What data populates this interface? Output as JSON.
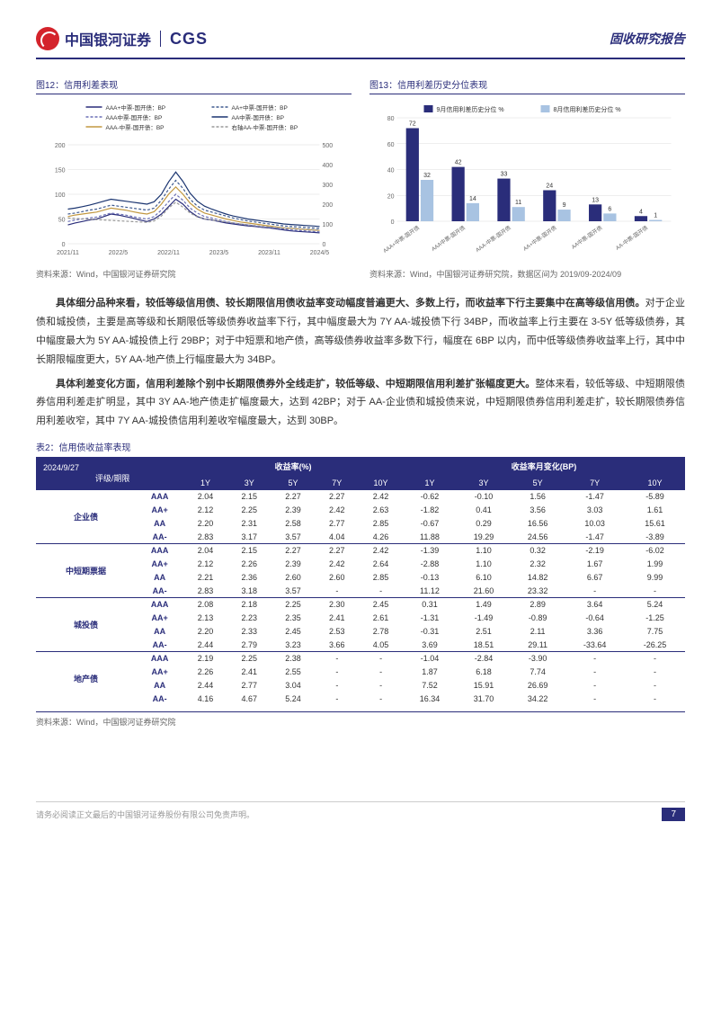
{
  "header": {
    "company_cn": "中国银河证券",
    "company_en": "CGS",
    "report_type": "固收研究报告"
  },
  "chart12": {
    "title": "图12：信用利差表现",
    "source": "资料来源：Wind，中国银河证券研究院",
    "type": "line",
    "legend": [
      "AAA+中票-国开债：BP",
      "AAA中票-国开债：BP",
      "AAA-中票-国开债：BP",
      "AA+中票-国开债：BP",
      "AA中票-国开债：BP",
      "右轴AA-中票-国开债：BP"
    ],
    "x_labels": [
      "2021/11",
      "2022/5",
      "2022/11",
      "2023/5",
      "2023/11",
      "2024/5"
    ],
    "y_left": {
      "min": 0,
      "max": 200,
      "step": 50
    },
    "y_right": {
      "min": 0,
      "max": 500,
      "step": 100
    },
    "colors": [
      "#2a2d7a",
      "#6a6fb5",
      "#c29840",
      "#3f5a8f",
      "#1a3470",
      "#999999"
    ],
    "grid_color": "#dddddd",
    "background": "#ffffff",
    "series": {
      "s1": [
        38,
        42,
        45,
        48,
        50,
        55,
        60,
        58,
        55,
        52,
        48,
        45,
        50,
        60,
        75,
        90,
        80,
        65,
        55,
        50,
        48,
        45,
        42,
        40,
        38,
        36,
        35,
        33,
        32,
        30,
        28,
        26,
        25,
        24,
        23,
        22
      ],
      "s2": [
        45,
        48,
        50,
        52,
        54,
        58,
        62,
        60,
        58,
        55,
        52,
        50,
        55,
        68,
        85,
        100,
        88,
        72,
        62,
        55,
        52,
        48,
        45,
        42,
        40,
        38,
        36,
        34,
        33,
        31,
        30,
        28,
        27,
        26,
        25,
        24
      ],
      "s3": [
        55,
        58,
        60,
        62,
        64,
        68,
        72,
        70,
        68,
        65,
        62,
        60,
        65,
        80,
        100,
        115,
        100,
        82,
        70,
        62,
        58,
        54,
        50,
        47,
        44,
        42,
        40,
        38,
        36,
        34,
        32,
        31,
        30,
        29,
        28,
        27
      ],
      "s4": [
        60,
        62,
        65,
        68,
        70,
        74,
        78,
        76,
        74,
        72,
        70,
        68,
        72,
        88,
        110,
        128,
        112,
        90,
        76,
        68,
        64,
        60,
        56,
        52,
        49,
        46,
        44,
        42,
        40,
        38,
        36,
        35,
        34,
        33,
        32,
        31
      ],
      "s5": [
        70,
        72,
        75,
        78,
        82,
        86,
        90,
        88,
        86,
        84,
        82,
        80,
        85,
        100,
        125,
        145,
        126,
        102,
        86,
        76,
        70,
        65,
        60,
        56,
        53,
        50,
        48,
        46,
        44,
        42,
        40,
        39,
        38,
        37,
        36,
        35
      ],
      "s6": [
        130,
        128,
        126,
        124,
        122,
        120,
        118,
        116,
        114,
        112,
        110,
        108,
        115,
        140,
        180,
        210,
        185,
        155,
        135,
        125,
        120,
        115,
        110,
        105,
        100,
        96,
        92,
        88,
        85,
        82,
        80,
        78,
        76,
        74,
        72,
        70
      ]
    }
  },
  "chart13": {
    "title": "图13：信用利差历史分位表现",
    "source": "资料来源：Wind，中国银河证券研究院，数据区间为 2019/09-2024/09",
    "type": "bar",
    "legend": [
      "9月信用利差历史分位 %",
      "8月信用利差历史分位 %"
    ],
    "colors": [
      "#2a2d7a",
      "#a8c3e2"
    ],
    "x_labels": [
      "AAA+中票-国开债",
      "AAA中票-国开债",
      "AAA-中票-国开债",
      "AA+中票-国开债",
      "AA中票-国开债",
      "AA-中票-国开债"
    ],
    "y": {
      "min": 0,
      "max": 80,
      "step": 20
    },
    "data_sep": [
      72,
      42,
      33,
      24,
      13,
      4
    ],
    "data_aug": [
      32,
      14,
      11,
      9,
      6,
      1
    ],
    "grid_color": "#dddddd",
    "background": "#ffffff"
  },
  "body": {
    "p1_bold": "具体细分品种来看，较低等级信用债、较长期限信用债收益率变动幅度普遍更大、多数上行，而收益率下行主要集中在高等级信用债。",
    "p1_rest": "对于企业债和城投债，主要是高等级和长期限低等级债券收益率下行，其中幅度最大为 7Y AA-城投债下行 34BP，而收益率上行主要在 3-5Y 低等级债券，其中幅度最大为 5Y AA-城投债上行 29BP；对于中短票和地产债，高等级债券收益率多数下行，幅度在 6BP 以内，而中低等级债券收益率上行，其中中长期限幅度更大，5Y AA-地产债上行幅度最大为 34BP。",
    "p2_bold": "具体利差变化方面，信用利差除个别中长期限债券外全线走扩，较低等级、中短期限信用利差扩张幅度更大。",
    "p2_rest": "整体来看，较低等级、中短期限债券信用利差走扩明显，其中 3Y AA-地产债走扩幅度最大，达到 42BP；对于 AA-企业债和城投债来说，中短期限债券信用利差走扩，较长期限债券信用利差收窄，其中 7Y AA-城投债信用利差收窄幅度最大，达到 30BP。"
  },
  "table2": {
    "title": "表2：信用债收益率表现",
    "source": "资料来源：Wind，中国银河证券研究院",
    "date": "2024/9/27",
    "rating_term": "评级/期限",
    "hdr_yield": "收益率(%)",
    "hdr_change": "收益率月变化(BP)",
    "terms": [
      "1Y",
      "3Y",
      "5Y",
      "7Y",
      "10Y"
    ],
    "categories": [
      "企业债",
      "中短期票据",
      "城投债",
      "地产债"
    ],
    "ratings": [
      "AAA",
      "AA+",
      "AA",
      "AA-"
    ],
    "rows": [
      {
        "cat": "企业债",
        "rating": "AAA",
        "y": [
          2.04,
          2.15,
          2.27,
          2.27,
          2.42
        ],
        "c": [
          -0.62,
          -0.1,
          1.56,
          -1.47,
          -5.89
        ]
      },
      {
        "cat": "企业债",
        "rating": "AA+",
        "y": [
          2.12,
          2.25,
          2.39,
          2.42,
          2.63
        ],
        "c": [
          -1.82,
          0.41,
          3.56,
          3.03,
          1.61
        ]
      },
      {
        "cat": "企业债",
        "rating": "AA",
        "y": [
          2.2,
          2.31,
          2.58,
          2.77,
          2.85
        ],
        "c": [
          -0.67,
          0.29,
          16.56,
          10.03,
          15.61
        ]
      },
      {
        "cat": "企业债",
        "rating": "AA-",
        "y": [
          2.83,
          3.17,
          3.57,
          4.04,
          4.26
        ],
        "c": [
          11.88,
          19.29,
          24.56,
          -1.47,
          -3.89
        ]
      },
      {
        "cat": "中短期票据",
        "rating": "AAA",
        "y": [
          2.04,
          2.15,
          2.27,
          2.27,
          2.42
        ],
        "c": [
          -1.39,
          1.1,
          0.32,
          -2.19,
          -6.02
        ]
      },
      {
        "cat": "中短期票据",
        "rating": "AA+",
        "y": [
          2.12,
          2.26,
          2.39,
          2.42,
          2.64
        ],
        "c": [
          -2.88,
          1.1,
          2.32,
          1.67,
          1.99
        ]
      },
      {
        "cat": "中短期票据",
        "rating": "AA",
        "y": [
          2.21,
          2.36,
          2.6,
          2.6,
          2.85
        ],
        "c": [
          -0.13,
          6.1,
          14.82,
          6.67,
          9.99
        ]
      },
      {
        "cat": "中短期票据",
        "rating": "AA-",
        "y": [
          2.83,
          3.18,
          3.57,
          "-",
          "-"
        ],
        "c": [
          11.12,
          21.6,
          23.32,
          "-",
          "-"
        ]
      },
      {
        "cat": "城投债",
        "rating": "AAA",
        "y": [
          2.08,
          2.18,
          2.25,
          2.3,
          2.45
        ],
        "c": [
          0.31,
          1.49,
          2.89,
          3.64,
          5.24
        ]
      },
      {
        "cat": "城投债",
        "rating": "AA+",
        "y": [
          2.13,
          2.23,
          2.35,
          2.41,
          2.61
        ],
        "c": [
          -1.31,
          -1.49,
          -0.89,
          -0.64,
          -1.25
        ]
      },
      {
        "cat": "城投债",
        "rating": "AA",
        "y": [
          2.2,
          2.33,
          2.45,
          2.53,
          2.78
        ],
        "c": [
          -0.31,
          2.51,
          2.11,
          3.36,
          7.75
        ]
      },
      {
        "cat": "城投债",
        "rating": "AA-",
        "y": [
          2.44,
          2.79,
          3.23,
          3.66,
          4.05
        ],
        "c": [
          3.69,
          18.51,
          29.11,
          -33.64,
          -26.25
        ]
      },
      {
        "cat": "地产债",
        "rating": "AAA",
        "y": [
          2.19,
          2.25,
          2.38,
          "-",
          "-"
        ],
        "c": [
          -1.04,
          -2.84,
          -3.9,
          "-",
          "-"
        ]
      },
      {
        "cat": "地产债",
        "rating": "AA+",
        "y": [
          2.26,
          2.41,
          2.55,
          "-",
          "-"
        ],
        "c": [
          1.87,
          6.18,
          7.74,
          "-",
          "-"
        ]
      },
      {
        "cat": "地产债",
        "rating": "AA",
        "y": [
          2.44,
          2.77,
          3.04,
          "-",
          "-"
        ],
        "c": [
          7.52,
          15.91,
          26.69,
          "-",
          "-"
        ]
      },
      {
        "cat": "地产债",
        "rating": "AA-",
        "y": [
          4.16,
          4.67,
          5.24,
          "-",
          "-"
        ],
        "c": [
          16.34,
          31.7,
          34.22,
          "-",
          "-"
        ]
      }
    ]
  },
  "footer": {
    "disclaimer": "请务必阅读正文最后的中国银河证券股份有限公司免责声明。",
    "page": "7"
  }
}
